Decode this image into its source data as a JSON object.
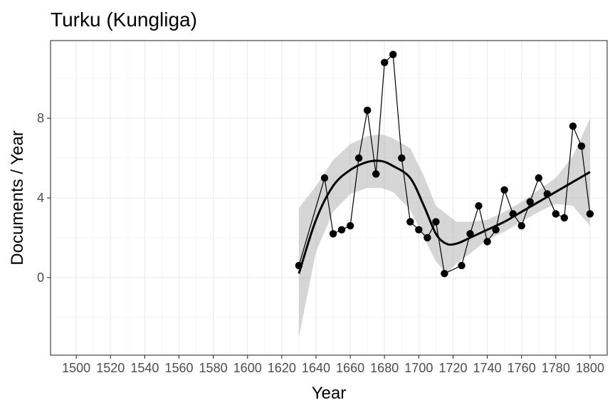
{
  "chart_data": {
    "type": "line",
    "title": "Turku (Kungliga)",
    "xlabel": "Year",
    "ylabel": "Documents / Year",
    "xlim": [
      1485,
      1810
    ],
    "ylim": [
      -3.9,
      11.9
    ],
    "x_ticks": [
      1500,
      1520,
      1540,
      1560,
      1580,
      1600,
      1620,
      1640,
      1660,
      1680,
      1700,
      1720,
      1740,
      1760,
      1780,
      1800
    ],
    "x_tick_labels": [
      "1500",
      "1520",
      "1540",
      "1560",
      "1580",
      "1600",
      "1620",
      "1640",
      "1660",
      "1680",
      "1700",
      "1720",
      "1740",
      "1760",
      "1780",
      "1800"
    ],
    "y_ticks": [
      0,
      4,
      8
    ],
    "y_tick_labels": [
      "0",
      "4",
      "8"
    ],
    "grid": true,
    "series": [
      {
        "kind": "observed",
        "x": [
          1630,
          1645,
          1650,
          1655,
          1660,
          1665,
          1670,
          1675,
          1680,
          1685,
          1690,
          1695,
          1700,
          1705,
          1710,
          1715,
          1725,
          1730,
          1735,
          1740,
          1745,
          1750,
          1755,
          1760,
          1765,
          1770,
          1775,
          1780,
          1785,
          1790,
          1795,
          1800
        ],
        "y": [
          0.6,
          5.0,
          2.2,
          2.4,
          2.6,
          6.0,
          8.4,
          5.2,
          10.8,
          11.2,
          6.0,
          2.8,
          2.4,
          2.0,
          2.8,
          0.2,
          0.6,
          2.2,
          3.6,
          1.8,
          2.4,
          4.4,
          3.2,
          2.6,
          3.8,
          5.0,
          4.2,
          3.2,
          3.0,
          7.6,
          6.6,
          3.2
        ]
      },
      {
        "kind": "smooth",
        "x": [
          1630,
          1640,
          1650,
          1660,
          1670,
          1678,
          1685,
          1695,
          1703,
          1710,
          1716,
          1722,
          1730,
          1740,
          1750,
          1760,
          1770,
          1780,
          1790,
          1800
        ],
        "y": [
          0.2,
          2.9,
          4.6,
          5.4,
          5.8,
          5.85,
          5.6,
          5.0,
          3.6,
          2.2,
          1.7,
          1.7,
          2.0,
          2.4,
          2.8,
          3.3,
          3.8,
          4.3,
          4.8,
          5.3
        ],
        "lower": [
          -3.0,
          1.3,
          3.3,
          4.2,
          4.5,
          4.5,
          4.3,
          3.4,
          2.0,
          0.8,
          0.2,
          0.7,
          1.2,
          1.9,
          2.3,
          2.8,
          3.3,
          3.7,
          3.6,
          2.6
        ],
        "upper": [
          3.5,
          4.6,
          5.9,
          6.7,
          7.1,
          7.2,
          7.0,
          6.5,
          5.1,
          3.6,
          3.2,
          2.8,
          2.8,
          2.9,
          3.3,
          3.8,
          4.4,
          5.0,
          6.1,
          8.0
        ]
      }
    ]
  }
}
